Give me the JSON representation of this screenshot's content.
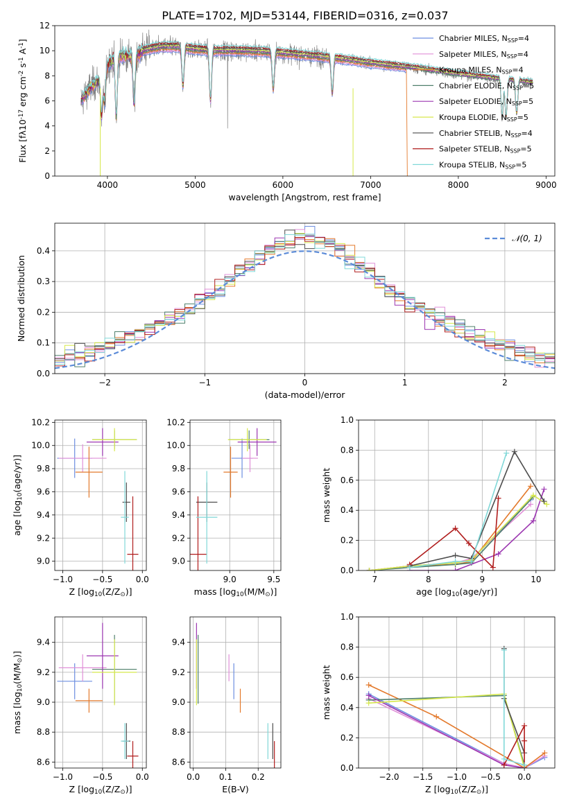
{
  "figure": {
    "title": "PLATE=1702, MJD=53144, FIBERID=0316, z=0.037"
  },
  "colors": {
    "Chabrier MILES": "#6c8ee0",
    "Salpeter MILES": "#e08fd8",
    "Kroupa MILES": "#e3792b",
    "Chabrier ELODIE": "#4f7f6b",
    "Salpeter ELODIE": "#9b35b0",
    "Kroupa ELODIE": "#d6e84a",
    "Chabrier STELIB": "#4d4d4d",
    "Salpeter STELIB": "#b01c1c",
    "Kroupa STELIB": "#80d8d8",
    "data": "#808080"
  },
  "chart_data": [
    {
      "id": "spectrum",
      "type": "line",
      "title": "PLATE=1702, MJD=53144, FIBERID=0316, z=0.037",
      "xlabel": "wavelength [Angstrom, rest frame]",
      "ylabel": "Flux [fλ10⁻¹⁷ erg cm⁻² s⁻¹ A⁻¹]",
      "xlim": [
        3400,
        9100
      ],
      "ylim": [
        0,
        12
      ],
      "xticks": [
        4000,
        5000,
        6000,
        7000,
        8000,
        9000
      ],
      "yticks": [
        0,
        2,
        4,
        6,
        8,
        10,
        12
      ],
      "legend_position": "top-right",
      "legend": [
        {
          "main": "Chabrier MILES, N",
          "sub": "SSP",
          "tail": "=4",
          "key": "Chabrier MILES"
        },
        {
          "main": "Salpeter MILES, N",
          "sub": "SSP",
          "tail": "=4",
          "key": "Salpeter MILES"
        },
        {
          "main": "Kroupa MILES, N",
          "sub": "SSP",
          "tail": "=4",
          "key": "Kroupa MILES"
        },
        {
          "main": "Chabrier ELODIE, N",
          "sub": "SSP",
          "tail": "=5",
          "key": "Chabrier ELODIE"
        },
        {
          "main": "Salpeter ELODIE, N",
          "sub": "SSP",
          "tail": "=5",
          "key": "Salpeter ELODIE"
        },
        {
          "main": "Kroupa ELODIE, N",
          "sub": "SSP",
          "tail": "=5",
          "key": "Kroupa ELODIE"
        },
        {
          "main": "Chabrier STELIB, N",
          "sub": "SSP",
          "tail": "=4",
          "key": "Chabrier STELIB"
        },
        {
          "main": "Salpeter STELIB, N",
          "sub": "SSP",
          "tail": "=5",
          "key": "Salpeter STELIB"
        },
        {
          "main": "Kroupa STELIB, N",
          "sub": "SSP",
          "tail": "=5",
          "key": "Kroupa STELIB"
        }
      ],
      "continuum": [
        [
          3700,
          6.0
        ],
        [
          3800,
          7.0
        ],
        [
          3900,
          7.6
        ],
        [
          4000,
          8.8
        ],
        [
          4100,
          9.6
        ],
        [
          4200,
          9.6
        ],
        [
          4300,
          9.5
        ],
        [
          4400,
          10.0
        ],
        [
          4600,
          10.3
        ],
        [
          4800,
          10.3
        ],
        [
          5000,
          10.1
        ],
        [
          5200,
          10.0
        ],
        [
          5500,
          10.0
        ],
        [
          5800,
          9.9
        ],
        [
          6000,
          9.8
        ],
        [
          6300,
          9.6
        ],
        [
          6600,
          9.4
        ],
        [
          7000,
          9.0
        ],
        [
          7500,
          8.6
        ],
        [
          8000,
          8.1
        ],
        [
          8500,
          7.7
        ],
        [
          8850,
          7.4
        ]
      ],
      "dips": [
        [
          3934,
          0.4
        ],
        [
          3968,
          0.3
        ],
        [
          4101,
          0.5
        ],
        [
          4304,
          0.4
        ],
        [
          4861,
          0.3
        ],
        [
          5175,
          0.4
        ],
        [
          5890,
          0.3
        ],
        [
          6563,
          0.3
        ],
        [
          8500,
          0.4
        ],
        [
          8544,
          0.4
        ],
        [
          8665,
          0.35
        ]
      ]
    },
    {
      "id": "residuals",
      "type": "histogram",
      "xlabel": "(data-model)/error",
      "ylabel": "Normed distribution",
      "xlim": [
        -2.5,
        2.5
      ],
      "ylim": [
        0,
        0.49
      ],
      "xticks": [
        -2,
        -1,
        0,
        1,
        2
      ],
      "yticks": [
        0.0,
        0.1,
        0.2,
        0.3,
        0.4
      ],
      "bin_width": 0.1,
      "reference": "N(0,1)",
      "legend_position": "top-right"
    },
    {
      "id": "age-vs-Z",
      "type": "scatter",
      "xlabel": "Z [log₁₀(Z/Z⊙)]",
      "ylabel": "age  [log₁₀(age/yr)]",
      "xlim": [
        -1.1,
        0.05
      ],
      "ylim": [
        8.92,
        10.22
      ],
      "xticks": [
        -1.0,
        -0.5,
        0.0
      ],
      "yticks": [
        9.0,
        9.2,
        9.4,
        9.6,
        9.8,
        10.0,
        10.2
      ]
    },
    {
      "id": "age-vs-mass",
      "type": "scatter",
      "xlabel": "mass [log₁₀(M/M⊙)]",
      "ylabel": "",
      "xlim": [
        8.55,
        9.58
      ],
      "ylim": [
        8.92,
        10.22
      ],
      "xticks": [
        9.0,
        9.5
      ],
      "yticks": [
        9.0,
        9.2,
        9.4,
        9.6,
        9.8,
        10.0,
        10.2
      ]
    },
    {
      "id": "weight-vs-age",
      "type": "line",
      "xlabel": "age  [log₁₀(age/yr)]",
      "ylabel": "mass weight",
      "xlim": [
        6.7,
        10.35
      ],
      "ylim": [
        0,
        1.0
      ],
      "xticks": [
        7,
        8,
        9,
        10
      ],
      "yticks": [
        0.0,
        0.2,
        0.4,
        0.6,
        0.8,
        1.0
      ]
    },
    {
      "id": "mass-vs-Z",
      "type": "scatter",
      "xlabel": "Z [log₁₀(Z/Z⊙)]",
      "ylabel": "mass [log₁₀(M/M⊙)]",
      "xlim": [
        -1.1,
        0.05
      ],
      "ylim": [
        8.56,
        9.57
      ],
      "xticks": [
        -1.0,
        -0.5,
        0.0
      ],
      "yticks": [
        8.6,
        8.8,
        9.0,
        9.2,
        9.4
      ]
    },
    {
      "id": "mass-vs-ebv",
      "type": "scatter",
      "xlabel": "E(B-V)",
      "ylabel": "",
      "xlim": [
        -0.01,
        0.27
      ],
      "ylim": [
        8.56,
        9.57
      ],
      "xticks": [
        0.0,
        0.1,
        0.2
      ],
      "yticks": [
        8.6,
        8.8,
        9.0,
        9.2,
        9.4
      ]
    },
    {
      "id": "weight-vs-Z",
      "type": "line",
      "xlabel": "Z [log₁₀(Z/Z⊙)]",
      "ylabel": "mass weight",
      "xlim": [
        -2.45,
        0.45
      ],
      "ylim": [
        0,
        1.0
      ],
      "xticks": [
        -2.0,
        -1.5,
        -1.0,
        -0.5,
        0.0
      ],
      "yticks": [
        0.0,
        0.2,
        0.4,
        0.6,
        0.8,
        1.0
      ]
    }
  ],
  "fits": [
    {
      "key": "Chabrier MILES",
      "Z": -0.85,
      "Zerr": 0.22,
      "age": 9.89,
      "ageerr": 0.17,
      "mass": 9.14,
      "masserr": 0.12,
      "ebv": 0.125,
      "ebverr": 0.05,
      "ages": [
        6.9,
        7.65,
        8.5,
        8.8,
        9.9
      ],
      "age_w": [
        0.0,
        0.03,
        0.05,
        0.07,
        0.47
      ],
      "Zs": [
        -2.3,
        -0.3,
        0.0,
        0.3
      ],
      "Z_w": [
        0.49,
        0.03,
        0.0,
        0.07
      ]
    },
    {
      "key": "Salpeter MILES",
      "Z": -0.75,
      "Zerr": 0.3,
      "age": 9.89,
      "ageerr": 0.12,
      "mass": 9.23,
      "masserr": 0.09,
      "ebv": 0.11,
      "ebverr": 0.06,
      "ages": [
        6.9,
        7.65,
        8.5,
        8.8,
        9.9
      ],
      "age_w": [
        0.0,
        0.03,
        0.05,
        0.08,
        0.44
      ],
      "Zs": [
        -2.3,
        -0.3,
        0.0,
        0.3
      ],
      "Z_w": [
        0.46,
        0.03,
        0.0,
        0.08
      ]
    },
    {
      "key": "Kroupa MILES",
      "Z": -0.67,
      "Zerr": 0.17,
      "age": 9.77,
      "ageerr": 0.22,
      "mass": 9.01,
      "masserr": 0.08,
      "ebv": 0.145,
      "ebverr": 0.06,
      "ages": [
        6.9,
        7.65,
        8.5,
        8.8,
        9.9
      ],
      "age_w": [
        0.0,
        0.03,
        0.04,
        0.06,
        0.56
      ],
      "Zs": [
        -2.3,
        -1.3,
        0.0,
        0.3
      ],
      "Z_w": [
        0.55,
        0.34,
        0.0,
        0.1
      ]
    },
    {
      "key": "Chabrier ELODIE",
      "Z": -0.35,
      "Zerr": 0.28,
      "age": 10.05,
      "ageerr": 0.08,
      "mass": 9.22,
      "masserr": 0.23,
      "ebv": 0.015,
      "ebverr": 0.1,
      "ages": [
        6.9,
        7.65,
        8.5,
        8.8,
        9.95
      ],
      "age_w": [
        0.0,
        0.02,
        0.04,
        0.05,
        0.49
      ],
      "Zs": [
        -2.3,
        -0.3,
        0.0
      ],
      "Z_w": [
        0.45,
        0.48,
        0.02
      ]
    },
    {
      "key": "Salpeter ELODIE",
      "Z": -0.5,
      "Zerr": 0.2,
      "age": 10.03,
      "ageerr": 0.12,
      "mass": 9.31,
      "masserr": 0.22,
      "ebv": 0.01,
      "ebverr": 0.1,
      "ages": [
        7.65,
        8.5,
        9.3,
        9.95,
        10.15
      ],
      "age_w": [
        0.0,
        0.0,
        0.11,
        0.33,
        0.54
      ],
      "Zs": [
        -2.3,
        -0.3,
        0.0
      ],
      "Z_w": [
        0.48,
        0.02,
        0.0
      ]
    },
    {
      "key": "Kroupa ELODIE",
      "Z": -0.35,
      "Zerr": 0.28,
      "age": 10.05,
      "ageerr": 0.1,
      "mass": 9.2,
      "masserr": 0.22,
      "ebv": 0.01,
      "ebverr": 0.12,
      "ages": [
        6.9,
        7.65,
        8.5,
        8.8,
        9.95,
        10.2
      ],
      "age_w": [
        0.0,
        0.03,
        0.05,
        0.07,
        0.5,
        0.44
      ],
      "Zs": [
        -2.3,
        -0.3,
        0.0
      ],
      "Z_w": [
        0.43,
        0.49,
        0.0
      ]
    },
    {
      "key": "Chabrier STELIB",
      "Z": -0.2,
      "Zerr": 0.05,
      "age": 9.51,
      "ageerr": 0.17,
      "mass": 8.74,
      "masserr": 0.12,
      "ebv": 0.245,
      "ebverr": 0.13,
      "ages": [
        7.65,
        8.5,
        8.8,
        9.6,
        10.15
      ],
      "age_w": [
        0.03,
        0.1,
        0.08,
        0.79,
        0.46
      ],
      "Zs": [
        -0.3,
        -0.3,
        0.0
      ],
      "Z_w": [
        0.79,
        0.46,
        0.1
      ]
    },
    {
      "key": "Salpeter STELIB",
      "Z": -0.12,
      "Zerr": 0.07,
      "age": 9.06,
      "ageerr": 0.5,
      "mass": 8.64,
      "masserr": 0.1,
      "ebv": 0.25,
      "ebverr": 0.12,
      "ages": [
        7.65,
        8.5,
        8.75,
        9.2,
        9.3
      ],
      "age_w": [
        0.04,
        0.28,
        0.18,
        0.02,
        0.48
      ],
      "Zs": [
        -0.3,
        0.0,
        0.0,
        0.0
      ],
      "Z_w": [
        0.02,
        0.28,
        0.18,
        0.0
      ]
    },
    {
      "key": "Kroupa STELIB",
      "Z": -0.22,
      "Zerr": 0.05,
      "age": 9.38,
      "ageerr": 0.4,
      "mass": 8.74,
      "masserr": 0.12,
      "ebv": 0.23,
      "ebverr": 0.09,
      "ages": [
        7.65,
        8.5,
        8.8,
        9.45
      ],
      "age_w": [
        0.02,
        0.06,
        0.06,
        0.78
      ],
      "Zs": [
        -0.3,
        -0.3,
        0.0
      ],
      "Z_w": [
        0.78,
        0.06,
        0.02
      ]
    }
  ]
}
